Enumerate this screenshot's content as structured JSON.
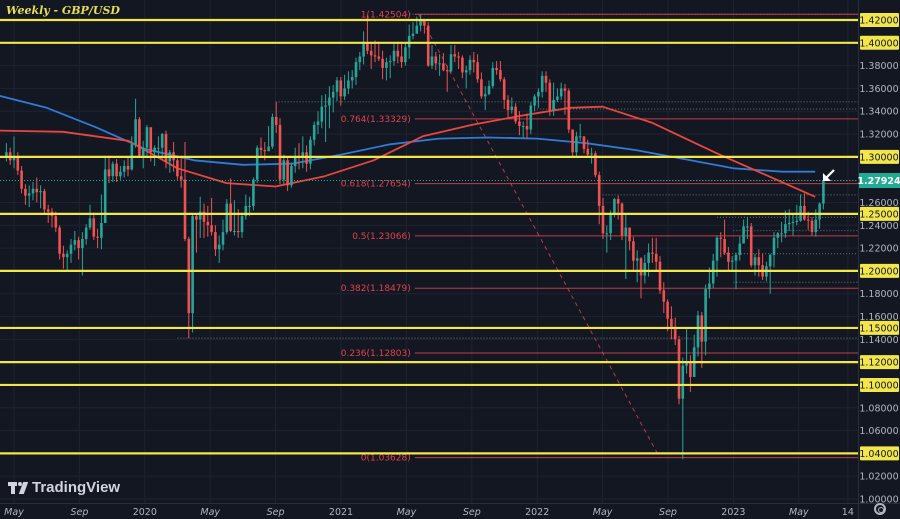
{
  "header": {
    "title": "Weekly - GBP/USD"
  },
  "branding": {
    "logo_text": "TradingView"
  },
  "colors": {
    "background": "#131722",
    "up": "#26a69a",
    "down": "#ef5350",
    "level": "#f2e64b",
    "fib": "#e0434f",
    "ma_slow": "#2f7bd8",
    "ma_fast": "#e8473f",
    "current": "#22ab94"
  },
  "chart_data": {
    "type": "candlestick",
    "title": "Weekly - GBP/USD",
    "timeframe": "weekly",
    "ylim": [
      1.0,
      1.42
    ],
    "grid": true,
    "price_ticks": [
      "1.42000",
      "1.40000",
      "1.38000",
      "1.36000",
      "1.34000",
      "1.32000",
      "1.30000",
      "1.26000",
      "1.25000",
      "1.24000",
      "1.22000",
      "1.20000",
      "1.18000",
      "1.16000",
      "1.15000",
      "1.14000",
      "1.12000",
      "1.10000",
      "1.08000",
      "1.06000",
      "1.04000",
      "1.02000",
      "1.00000"
    ],
    "time_ticks": [
      {
        "label": "May",
        "date": "2019-05"
      },
      {
        "label": "Sep",
        "date": "2019-09"
      },
      {
        "label": "2020",
        "date": "2020-01"
      },
      {
        "label": "May",
        "date": "2020-05"
      },
      {
        "label": "Sep",
        "date": "2020-09"
      },
      {
        "label": "2021",
        "date": "2021-01"
      },
      {
        "label": "May",
        "date": "2021-05"
      },
      {
        "label": "Sep",
        "date": "2021-09"
      },
      {
        "label": "2022",
        "date": "2022-01"
      },
      {
        "label": "May",
        "date": "2022-05"
      },
      {
        "label": "Sep",
        "date": "2022-09"
      },
      {
        "label": "2023",
        "date": "2023-01"
      },
      {
        "label": "May",
        "date": "2023-05"
      },
      {
        "label": "14",
        "date": "2023-08"
      }
    ],
    "current_price": "1.27924",
    "horizontal_levels": [
      "1.42000",
      "1.40000",
      "1.30000",
      "1.25000",
      "1.20000",
      "1.15000",
      "1.12000",
      "1.10000",
      "1.04000"
    ],
    "fibonacci": {
      "from_date": "2021-06",
      "to_date": "2022-08",
      "levels": [
        {
          "label": "1(1.42504)",
          "price": 1.42504
        },
        {
          "label": "0.764(1.33329)",
          "price": 1.33329
        },
        {
          "label": "0.618(1.27654)",
          "price": 1.27654
        },
        {
          "label": "0.5(1.23066)",
          "price": 1.23066
        },
        {
          "label": "0.382(1.18479)",
          "price": 1.18479
        },
        {
          "label": "0.236(1.12803)",
          "price": 1.12803
        },
        {
          "label": "0(1.03628)",
          "price": 1.03628
        }
      ]
    },
    "dotted_levels": [
      {
        "price": 1.425,
        "from": "2021-05"
      },
      {
        "price": 1.3482,
        "from": "2020-09"
      },
      {
        "price": 1.342,
        "from": "2022-01"
      },
      {
        "price": 1.2792,
        "from": "2022-08"
      },
      {
        "price": 1.2667,
        "from": "2022-05"
      },
      {
        "price": 1.247,
        "from": "2022-12"
      },
      {
        "price": 1.2353,
        "from": "2023-01"
      },
      {
        "price": 1.215,
        "from": "2022-12"
      },
      {
        "price": 1.19,
        "from": "2023-01"
      },
      {
        "price": 1.141,
        "from": "2020-03"
      }
    ],
    "ma_fast": [
      [
        "2019-04",
        1.323
      ],
      [
        "2019-08",
        1.322
      ],
      [
        "2019-12",
        1.314
      ],
      [
        "2020-03",
        1.29
      ],
      [
        "2020-06",
        1.277
      ],
      [
        "2020-09",
        1.274
      ],
      [
        "2020-12",
        1.283
      ],
      [
        "2021-03",
        1.297
      ],
      [
        "2021-06",
        1.318
      ],
      [
        "2021-09",
        1.328
      ],
      [
        "2021-12",
        1.336
      ],
      [
        "2022-03",
        1.343
      ],
      [
        "2022-05",
        1.344
      ],
      [
        "2022-08",
        1.33
      ],
      [
        "2022-12",
        1.303
      ],
      [
        "2023-03",
        1.284
      ],
      [
        "2023-06",
        1.265
      ]
    ],
    "ma_slow": [
      [
        "2019-04",
        1.354
      ],
      [
        "2019-07",
        1.343
      ],
      [
        "2019-10",
        1.326
      ],
      [
        "2020-01",
        1.307
      ],
      [
        "2020-04",
        1.297
      ],
      [
        "2020-07",
        1.293
      ],
      [
        "2020-10",
        1.294
      ],
      [
        "2021-01",
        1.302
      ],
      [
        "2021-04",
        1.311
      ],
      [
        "2021-07",
        1.316
      ],
      [
        "2021-10",
        1.317
      ],
      [
        "2022-01",
        1.316
      ],
      [
        "2022-04",
        1.312
      ],
      [
        "2022-07",
        1.306
      ],
      [
        "2022-10",
        1.298
      ],
      [
        "2023-01",
        1.29
      ],
      [
        "2023-04",
        1.287
      ],
      [
        "2023-06",
        1.287
      ]
    ],
    "first_open": 1.3,
    "candles_hlc": [
      [
        1.312,
        1.296,
        1.304
      ],
      [
        1.308,
        1.293,
        1.297
      ],
      [
        1.318,
        1.29,
        1.3
      ],
      [
        1.304,
        1.284,
        1.288
      ],
      [
        1.292,
        1.268,
        1.272
      ],
      [
        1.276,
        1.258,
        1.266
      ],
      [
        1.275,
        1.256,
        1.268
      ],
      [
        1.278,
        1.262,
        1.272
      ],
      [
        1.282,
        1.26,
        1.269
      ],
      [
        1.275,
        1.255,
        1.27
      ],
      [
        1.272,
        1.25,
        1.254
      ],
      [
        1.258,
        1.242,
        1.252
      ],
      [
        1.255,
        1.238,
        1.248
      ],
      [
        1.252,
        1.234,
        1.238
      ],
      [
        1.24,
        1.21,
        1.215
      ],
      [
        1.222,
        1.202,
        1.212
      ],
      [
        1.218,
        1.201,
        1.215
      ],
      [
        1.228,
        1.207,
        1.223
      ],
      [
        1.235,
        1.218,
        1.227
      ],
      [
        1.23,
        1.21,
        1.22
      ],
      [
        1.234,
        1.196,
        1.228
      ],
      [
        1.241,
        1.223,
        1.238
      ],
      [
        1.258,
        1.236,
        1.246
      ],
      [
        1.251,
        1.227,
        1.23
      ],
      [
        1.237,
        1.22,
        1.229
      ],
      [
        1.267,
        1.219,
        1.242
      ],
      [
        1.301,
        1.253,
        1.289
      ],
      [
        1.301,
        1.277,
        1.283
      ],
      [
        1.296,
        1.278,
        1.294
      ],
      [
        1.298,
        1.278,
        1.283
      ],
      [
        1.292,
        1.28,
        1.287
      ],
      [
        1.297,
        1.282,
        1.292
      ],
      [
        1.299,
        1.283,
        1.289
      ],
      [
        1.318,
        1.288,
        1.311
      ],
      [
        1.351,
        1.308,
        1.333
      ],
      [
        1.335,
        1.299,
        1.301
      ],
      [
        1.314,
        1.29,
        1.308
      ],
      [
        1.328,
        1.299,
        1.326
      ],
      [
        1.324,
        1.296,
        1.304
      ],
      [
        1.31,
        1.292,
        1.308
      ],
      [
        1.318,
        1.3,
        1.308
      ],
      [
        1.321,
        1.298,
        1.32
      ],
      [
        1.323,
        1.29,
        1.296
      ],
      [
        1.306,
        1.286,
        1.304
      ],
      [
        1.313,
        1.287,
        1.297
      ],
      [
        1.3,
        1.28,
        1.283
      ],
      [
        1.3,
        1.273,
        1.28
      ],
      [
        1.313,
        1.226,
        1.228
      ],
      [
        1.23,
        1.141,
        1.163
      ],
      [
        1.25,
        1.146,
        1.248
      ],
      [
        1.25,
        1.216,
        1.245
      ],
      [
        1.265,
        1.229,
        1.252
      ],
      [
        1.259,
        1.229,
        1.243
      ],
      [
        1.257,
        1.23,
        1.24
      ],
      [
        1.264,
        1.231,
        1.234
      ],
      [
        1.24,
        1.213,
        1.219
      ],
      [
        1.231,
        1.207,
        1.223
      ],
      [
        1.245,
        1.218,
        1.234
      ],
      [
        1.263,
        1.232,
        1.259
      ],
      [
        1.281,
        1.234,
        1.235
      ],
      [
        1.262,
        1.231,
        1.235
      ],
      [
        1.254,
        1.229,
        1.234
      ],
      [
        1.251,
        1.229,
        1.248
      ],
      [
        1.267,
        1.245,
        1.257
      ],
      [
        1.265,
        1.248,
        1.257
      ],
      [
        1.282,
        1.253,
        1.28
      ],
      [
        1.31,
        1.277,
        1.308
      ],
      [
        1.317,
        1.299,
        1.306
      ],
      [
        1.313,
        1.297,
        1.305
      ],
      [
        1.327,
        1.305,
        1.309
      ],
      [
        1.338,
        1.307,
        1.335
      ],
      [
        1.348,
        1.321,
        1.328
      ],
      [
        1.334,
        1.276,
        1.28
      ],
      [
        1.302,
        1.276,
        1.297
      ],
      [
        1.3,
        1.27,
        1.275
      ],
      [
        1.295,
        1.273,
        1.292
      ],
      [
        1.308,
        1.286,
        1.3
      ],
      [
        1.312,
        1.289,
        1.299
      ],
      [
        1.318,
        1.29,
        1.304
      ],
      [
        1.31,
        1.287,
        1.294
      ],
      [
        1.318,
        1.289,
        1.315
      ],
      [
        1.331,
        1.31,
        1.328
      ],
      [
        1.34,
        1.32,
        1.331
      ],
      [
        1.354,
        1.325,
        1.344
      ],
      [
        1.355,
        1.313,
        1.345
      ],
      [
        1.362,
        1.325,
        1.352
      ],
      [
        1.363,
        1.339,
        1.357
      ],
      [
        1.37,
        1.349,
        1.367
      ],
      [
        1.37,
        1.345,
        1.353
      ],
      [
        1.372,
        1.35,
        1.36
      ],
      [
        1.375,
        1.355,
        1.367
      ],
      [
        1.376,
        1.36,
        1.37
      ],
      [
        1.387,
        1.363,
        1.383
      ],
      [
        1.392,
        1.376,
        1.388
      ],
      [
        1.41,
        1.381,
        1.4
      ],
      [
        1.424,
        1.39,
        1.393
      ],
      [
        1.401,
        1.377,
        1.389
      ],
      [
        1.402,
        1.383,
        1.388
      ],
      [
        1.401,
        1.384,
        1.386
      ],
      [
        1.393,
        1.368,
        1.378
      ],
      [
        1.387,
        1.367,
        1.383
      ],
      [
        1.389,
        1.369,
        1.384
      ],
      [
        1.4,
        1.38,
        1.393
      ],
      [
        1.401,
        1.382,
        1.388
      ],
      [
        1.399,
        1.378,
        1.383
      ],
      [
        1.4,
        1.38,
        1.396
      ],
      [
        1.416,
        1.386,
        1.406
      ],
      [
        1.418,
        1.403,
        1.408
      ],
      [
        1.423,
        1.408,
        1.415
      ],
      [
        1.425,
        1.41,
        1.419
      ],
      [
        1.421,
        1.408,
        1.415
      ],
      [
        1.418,
        1.379,
        1.38
      ],
      [
        1.398,
        1.377,
        1.388
      ],
      [
        1.392,
        1.376,
        1.382
      ],
      [
        1.39,
        1.371,
        1.382
      ],
      [
        1.391,
        1.375,
        1.376
      ],
      [
        1.38,
        1.357,
        1.375
      ],
      [
        1.398,
        1.374,
        1.39
      ],
      [
        1.398,
        1.383,
        1.388
      ],
      [
        1.392,
        1.377,
        1.387
      ],
      [
        1.389,
        1.369,
        1.374
      ],
      [
        1.38,
        1.36,
        1.376
      ],
      [
        1.389,
        1.372,
        1.385
      ],
      [
        1.392,
        1.374,
        1.383
      ],
      [
        1.39,
        1.365,
        1.368
      ],
      [
        1.374,
        1.351,
        1.353
      ],
      [
        1.362,
        1.341,
        1.355
      ],
      [
        1.367,
        1.354,
        1.362
      ],
      [
        1.383,
        1.36,
        1.378
      ],
      [
        1.384,
        1.372,
        1.376
      ],
      [
        1.384,
        1.366,
        1.368
      ],
      [
        1.37,
        1.342,
        1.35
      ],
      [
        1.354,
        1.334,
        1.341
      ],
      [
        1.352,
        1.338,
        1.344
      ],
      [
        1.347,
        1.329,
        1.331
      ],
      [
        1.34,
        1.319,
        1.327
      ],
      [
        1.331,
        1.316,
        1.327
      ],
      [
        1.338,
        1.316,
        1.324
      ],
      [
        1.348,
        1.32,
        1.345
      ],
      [
        1.355,
        1.34,
        1.353
      ],
      [
        1.36,
        1.343,
        1.357
      ],
      [
        1.375,
        1.352,
        1.371
      ],
      [
        1.375,
        1.357,
        1.365
      ],
      [
        1.368,
        1.336,
        1.341
      ],
      [
        1.365,
        1.336,
        1.35
      ],
      [
        1.36,
        1.348,
        1.353
      ],
      [
        1.365,
        1.35,
        1.36
      ],
      [
        1.364,
        1.337,
        1.358
      ],
      [
        1.36,
        1.321,
        1.324
      ],
      [
        1.324,
        1.3,
        1.304
      ],
      [
        1.322,
        1.3,
        1.318
      ],
      [
        1.329,
        1.314,
        1.318
      ],
      [
        1.318,
        1.303,
        1.307
      ],
      [
        1.315,
        1.3,
        1.302
      ],
      [
        1.308,
        1.294,
        1.303
      ],
      [
        1.305,
        1.282,
        1.284
      ],
      [
        1.287,
        1.241,
        1.257
      ],
      [
        1.264,
        1.228,
        1.233
      ],
      [
        1.24,
        1.216,
        1.233
      ],
      [
        1.253,
        1.227,
        1.249
      ],
      [
        1.264,
        1.247,
        1.263
      ],
      [
        1.266,
        1.245,
        1.259
      ],
      [
        1.26,
        1.227,
        1.231
      ],
      [
        1.25,
        1.193,
        1.238
      ],
      [
        1.235,
        1.218,
        1.226
      ],
      [
        1.23,
        1.2,
        1.209
      ],
      [
        1.218,
        1.19,
        1.211
      ],
      [
        1.212,
        1.176,
        1.196
      ],
      [
        1.214,
        1.189,
        1.207
      ],
      [
        1.224,
        1.195,
        1.216
      ],
      [
        1.229,
        1.207,
        1.215
      ],
      [
        1.229,
        1.2,
        1.208
      ],
      [
        1.213,
        1.18,
        1.183
      ],
      [
        1.19,
        1.163,
        1.173
      ],
      [
        1.175,
        1.147,
        1.158
      ],
      [
        1.169,
        1.14,
        1.151
      ],
      [
        1.159,
        1.135,
        1.14
      ],
      [
        1.143,
        1.083,
        1.088
      ],
      [
        1.124,
        1.035,
        1.117
      ],
      [
        1.149,
        1.11,
        1.119
      ],
      [
        1.126,
        1.094,
        1.107
      ],
      [
        1.144,
        1.11,
        1.133
      ],
      [
        1.165,
        1.125,
        1.161
      ],
      [
        1.164,
        1.115,
        1.138
      ],
      [
        1.188,
        1.126,
        1.184
      ],
      [
        1.203,
        1.176,
        1.189
      ],
      [
        1.215,
        1.185,
        1.209
      ],
      [
        1.231,
        1.195,
        1.229
      ],
      [
        1.234,
        1.212,
        1.228
      ],
      [
        1.245,
        1.214,
        1.216
      ],
      [
        1.221,
        1.199,
        1.208
      ],
      [
        1.213,
        1.2,
        1.209
      ],
      [
        1.216,
        1.184,
        1.214
      ],
      [
        1.23,
        1.209,
        1.224
      ],
      [
        1.245,
        1.224,
        1.239
      ],
      [
        1.247,
        1.228,
        1.239
      ],
      [
        1.242,
        1.203,
        1.205
      ],
      [
        1.215,
        1.196,
        1.212
      ],
      [
        1.219,
        1.195,
        1.205
      ],
      [
        1.215,
        1.192,
        1.195
      ],
      [
        1.208,
        1.191,
        1.204
      ],
      [
        1.215,
        1.18,
        1.214
      ],
      [
        1.234,
        1.203,
        1.229
      ],
      [
        1.234,
        1.22,
        1.233
      ],
      [
        1.243,
        1.225,
        1.233
      ],
      [
        1.253,
        1.229,
        1.241
      ],
      [
        1.254,
        1.235,
        1.242
      ],
      [
        1.249,
        1.231,
        1.243
      ],
      [
        1.258,
        1.24,
        1.244
      ],
      [
        1.267,
        1.243,
        1.257
      ],
      [
        1.268,
        1.244,
        1.245
      ],
      [
        1.252,
        1.236,
        1.244
      ],
      [
        1.247,
        1.231,
        1.234
      ],
      [
        1.254,
        1.23,
        1.245
      ],
      [
        1.26,
        1.237,
        1.259
      ],
      [
        1.285,
        1.254,
        1.279
      ]
    ]
  }
}
